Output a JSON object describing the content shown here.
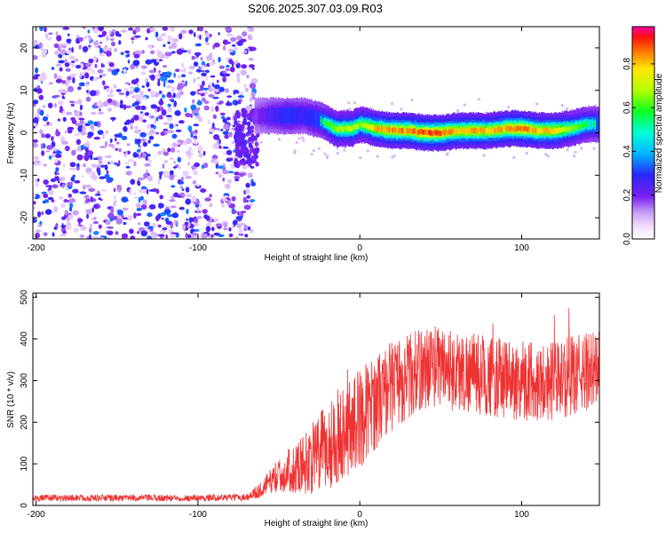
{
  "title": "S206.2025.307.03.09.R03",
  "colors": {
    "snr_line": "#ee3333",
    "axes": "#000000"
  },
  "chart_data": [
    {
      "type": "heatmap",
      "name": "spectrogram",
      "xlabel": "Height of straight line (km)",
      "ylabel": "Frequency (Hz)",
      "xlim": [
        -202,
        148
      ],
      "ylim": [
        -25,
        25
      ],
      "xticks": [
        -200,
        -100,
        0,
        100
      ],
      "yticks": [
        -20,
        -10,
        0,
        10,
        20
      ],
      "xtick_labels": [
        "-200",
        "-100",
        "0",
        "100"
      ],
      "ytick_labels": [
        "-20",
        "-10",
        "0",
        "10",
        "20"
      ],
      "colorbar": {
        "label": "Normalized spectral amplitude",
        "range": [
          0,
          0.97
        ],
        "ticks": [
          0.0,
          0.2,
          0.4,
          0.6,
          0.8
        ],
        "tick_labels": [
          "0.0",
          "0.2",
          "0.4",
          "0.6",
          "0.8"
        ]
      },
      "noise_region_x": [
        -202,
        -65
      ],
      "signal_ridge": {
        "x": [
          -65,
          -55,
          -45,
          -35,
          -25,
          -15,
          -5,
          0,
          10,
          20,
          30,
          40,
          50,
          60,
          70,
          80,
          90,
          100,
          110,
          120,
          130,
          140,
          148
        ],
        "freq": [
          4,
          4,
          4,
          4,
          3,
          1,
          1,
          2,
          1,
          0.5,
          0.5,
          0,
          0,
          0.5,
          0.5,
          0.5,
          1,
          1,
          0.5,
          0.5,
          1,
          2,
          2
        ],
        "amplitude": [
          0.25,
          0.4,
          0.5,
          0.45,
          0.55,
          0.7,
          0.75,
          0.7,
          0.85,
          0.9,
          0.9,
          0.95,
          0.95,
          0.85,
          0.9,
          0.85,
          0.9,
          0.95,
          0.85,
          0.85,
          0.7,
          0.6,
          0.55
        ]
      }
    },
    {
      "type": "line",
      "name": "snr",
      "xlabel": "Height of straight line (km)",
      "ylabel": "SNR (10 * v/v)",
      "xlim": [
        -202,
        148
      ],
      "ylim": [
        0,
        510
      ],
      "xticks": [
        -200,
        -100,
        0,
        100
      ],
      "yticks": [
        0,
        100,
        200,
        300,
        400,
        500
      ],
      "xtick_labels": [
        "-200",
        "-100",
        "0",
        "100"
      ],
      "ytick_labels": [
        "0",
        "100",
        "200",
        "300",
        "400",
        "500"
      ],
      "trend": {
        "x": [
          -202,
          -150,
          -100,
          -70,
          -62,
          -55,
          -50,
          -40,
          -30,
          -20,
          -10,
          0,
          10,
          20,
          30,
          40,
          50,
          60,
          70,
          80,
          90,
          100,
          110,
          120,
          130,
          140,
          148
        ],
        "snr": [
          18,
          18,
          18,
          20,
          35,
          60,
          70,
          90,
          110,
          140,
          180,
          210,
          250,
          290,
          310,
          330,
          340,
          320,
          320,
          310,
          300,
          300,
          300,
          300,
          310,
          320,
          330
        ]
      },
      "noise_amplitude": {
        "x": [
          -202,
          -70,
          -60,
          -40,
          -20,
          0,
          20,
          40,
          148
        ],
        "amp": [
          8,
          8,
          20,
          60,
          110,
          120,
          110,
          100,
          95
        ]
      }
    }
  ]
}
